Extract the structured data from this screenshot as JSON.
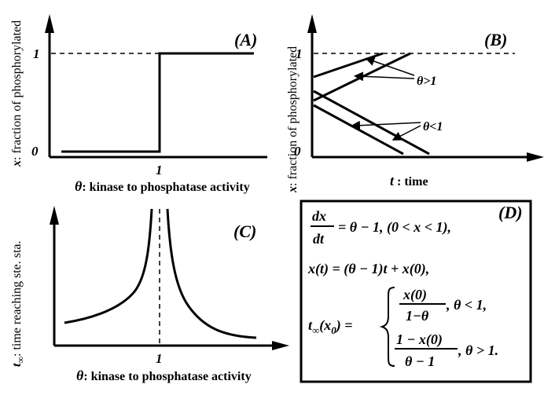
{
  "panels": {
    "A": {
      "label": "(A)",
      "y_label_var": "x",
      "y_label_text": ": fraction of phosphorylated",
      "x_label_var": "θ",
      "x_label_text": ": kinase to phosphatase activity",
      "tick_0": "0",
      "tick_1_y": "1",
      "tick_1_x": "1"
    },
    "B": {
      "label": "(B)",
      "y_label_var": "x",
      "y_label_text": ": fraction of phosphorylated",
      "x_label_var": "t",
      "x_label_text": " : time",
      "tick_0": "0",
      "tick_1_y": "1",
      "ann_gt": "θ>1",
      "ann_lt": "θ<1"
    },
    "C": {
      "label": "(C)",
      "y_label_var": "t",
      "y_label_sub": "∞",
      "y_label_text": ": time reaching ste. sta.",
      "x_label_var": "θ",
      "x_label_text": ": kinase to phosphatase activity",
      "tick_1_x": "1"
    },
    "D": {
      "label": "(D)",
      "eq1_num": "dx",
      "eq1_den": "dt",
      "eq1_rhs": "= θ − 1,   (0 < x < 1),",
      "eq2": "x(t)  =  (θ − 1)t + x(0),",
      "eq3_lhs": "t",
      "eq3_sub": "∞",
      "eq3_arg": "(x",
      "eq3_arg_sub": "0",
      "eq3_arg_end": ") =",
      "case1_num": "x(0)",
      "case1_den": "1−θ",
      "case1_cond": ",   θ < 1,",
      "case2_num": "1 − x(0)",
      "case2_den": "θ − 1",
      "case2_cond": ",   θ > 1."
    }
  }
}
